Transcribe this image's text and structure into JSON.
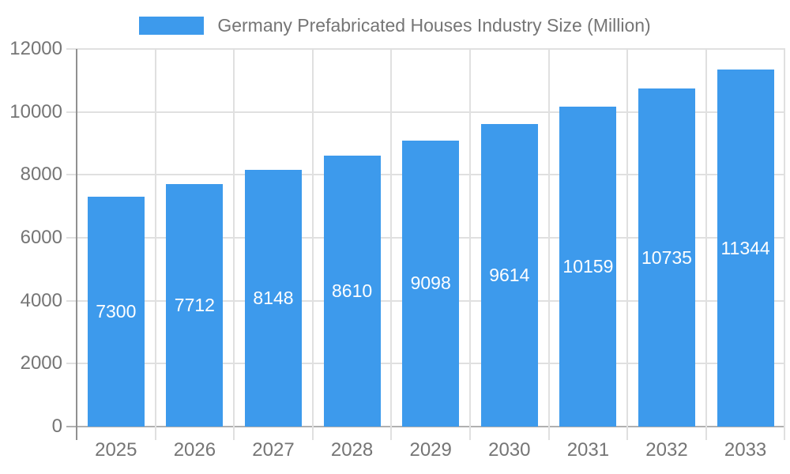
{
  "legend": {
    "swatch_color": "#3D9AEC"
  },
  "chart_data": {
    "type": "bar",
    "title": "Germany Prefabricated Houses Industry Size (Million)",
    "categories": [
      "2025",
      "2026",
      "2027",
      "2028",
      "2029",
      "2030",
      "2031",
      "2032",
      "2033"
    ],
    "values": [
      7300,
      7712,
      8148,
      8610,
      9098,
      9614,
      10159,
      10735,
      11344
    ],
    "value_labels": [
      "7300",
      "7712",
      "8148",
      "8610",
      "9098",
      "9614",
      "10159",
      "10735",
      "11344"
    ],
    "yticks": [
      0,
      2000,
      4000,
      6000,
      8000,
      10000,
      12000
    ],
    "ylim": [
      0,
      12000
    ],
    "xlabel": "",
    "ylabel": "",
    "grid": true,
    "legend_position": "top",
    "colors": {
      "bar": "#3D9AEC",
      "value_label": "#FFFFFF",
      "axis_text": "#757575",
      "gridline": "#E0E0E0",
      "baseline": "#B0B0B0",
      "axis_line": "#909090",
      "background": "#FFFFFF"
    }
  }
}
